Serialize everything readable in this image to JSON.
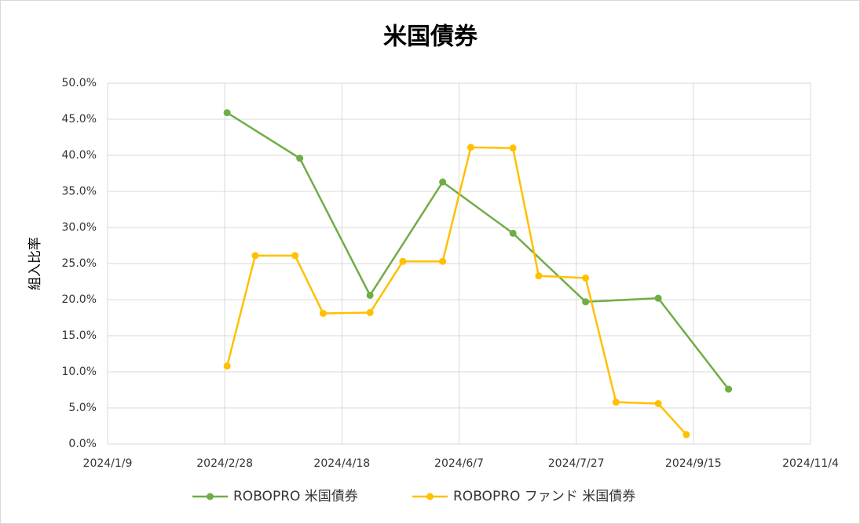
{
  "chart_data": {
    "type": "line",
    "title": "米国債券",
    "y_label": "組入比率",
    "xlim": [
      "2024/1/9",
      "2024/11/4"
    ],
    "xticks": [
      "2024/1/9",
      "2024/2/28",
      "2024/4/18",
      "2024/6/7",
      "2024/7/27",
      "2024/9/15",
      "2024/11/4"
    ],
    "ylim": [
      0,
      50
    ],
    "yticks": [
      {
        "value": 0,
        "label": "0.0%"
      },
      {
        "value": 5,
        "label": "5.0%"
      },
      {
        "value": 10,
        "label": "10.0%"
      },
      {
        "value": 15,
        "label": "15.0%"
      },
      {
        "value": 20,
        "label": "20.0%"
      },
      {
        "value": 25,
        "label": "25.0%"
      },
      {
        "value": 30,
        "label": "30.0%"
      },
      {
        "value": 35,
        "label": "35.0%"
      },
      {
        "value": 40,
        "label": "40.0%"
      },
      {
        "value": 45,
        "label": "45.0%"
      },
      {
        "value": 50,
        "label": "50.0%"
      }
    ],
    "grid": true,
    "legend": "bottom",
    "series": [
      {
        "name": "ROBOPRO 米国債券",
        "color": "#70ad47",
        "x": [
          "2024/2/29",
          "2024/3/31",
          "2024/4/30",
          "2024/5/31",
          "2024/6/30",
          "2024/7/31",
          "2024/8/31",
          "2024/9/30"
        ],
        "values": [
          45.9,
          39.6,
          20.6,
          36.3,
          29.2,
          19.7,
          20.2,
          7.6
        ]
      },
      {
        "name": "ROBOPRO ファンド 米国債券",
        "color": "#ffc000",
        "x": [
          "2024/2/29",
          "2024/3/12",
          "2024/3/29",
          "2024/4/10",
          "2024/4/30",
          "2024/5/14",
          "2024/5/31",
          "2024/6/12",
          "2024/6/30",
          "2024/7/11",
          "2024/7/31",
          "2024/8/13",
          "2024/8/31",
          "2024/9/12"
        ],
        "values": [
          10.8,
          26.1,
          26.1,
          18.1,
          18.2,
          25.3,
          25.3,
          41.1,
          41.0,
          23.3,
          23.0,
          5.8,
          5.6,
          1.3
        ]
      }
    ]
  }
}
